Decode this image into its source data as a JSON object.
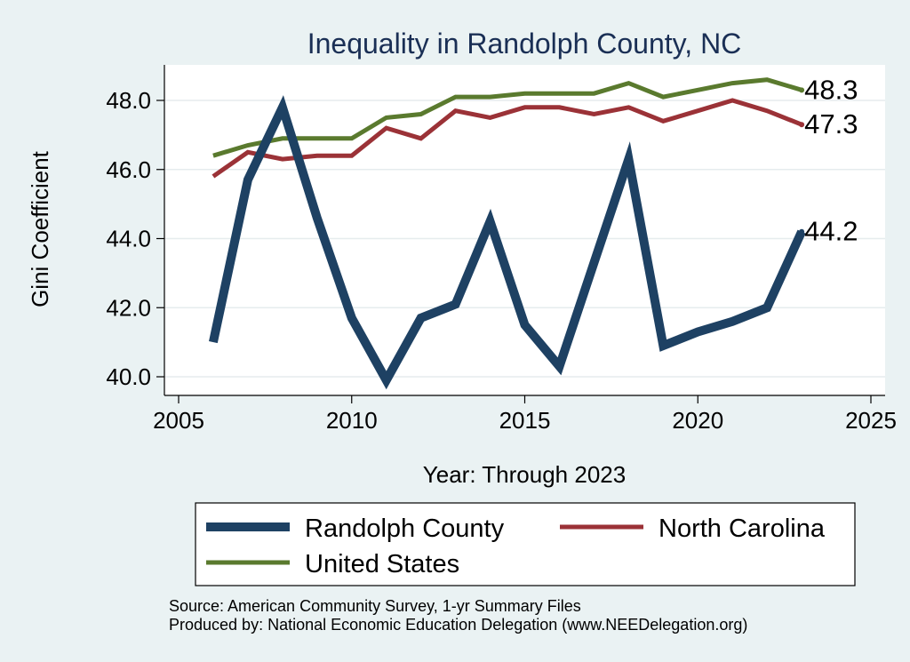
{
  "chart_data": {
    "type": "line",
    "title": "Inequality in Randolph County, NC",
    "xlabel": "Year: Through 2023",
    "ylabel": "Gini Coefficient",
    "xlim": [
      2005,
      2025
    ],
    "ylim": [
      39.8,
      48.9
    ],
    "xticks": [
      2005,
      2010,
      2015,
      2020,
      2025
    ],
    "yticks": [
      40.0,
      42.0,
      44.0,
      46.0,
      48.0
    ],
    "xtick_labels": [
      "2005",
      "2010",
      "2015",
      "2020",
      "2025"
    ],
    "ytick_labels": [
      "40.0",
      "42.0",
      "44.0",
      "46.0",
      "48.0"
    ],
    "grid": true,
    "x": [
      2006,
      2007,
      2008,
      2009,
      2010,
      2011,
      2012,
      2013,
      2014,
      2015,
      2016,
      2017,
      2018,
      2019,
      2020,
      2021,
      2022,
      2023
    ],
    "series": [
      {
        "name": "Randolph County",
        "color": "#1e4163",
        "width": "thick",
        "values": [
          41.0,
          45.7,
          47.8,
          44.6,
          41.7,
          39.9,
          41.7,
          42.1,
          44.5,
          41.5,
          40.3,
          43.3,
          46.3,
          40.9,
          41.3,
          41.6,
          42.0,
          44.2
        ],
        "end_label": "44.2"
      },
      {
        "name": "North Carolina",
        "color": "#9b3237",
        "width": "medium",
        "values": [
          45.8,
          46.5,
          46.3,
          46.4,
          46.4,
          47.2,
          46.9,
          47.7,
          47.5,
          47.8,
          47.8,
          47.6,
          47.8,
          47.4,
          47.7,
          48.0,
          47.7,
          47.3
        ],
        "end_label": "47.3"
      },
      {
        "name": "United States",
        "color": "#5a7a2e",
        "width": "medium",
        "values": [
          46.4,
          46.7,
          46.9,
          46.9,
          46.9,
          47.5,
          47.6,
          48.1,
          48.1,
          48.2,
          48.2,
          48.2,
          48.5,
          48.1,
          48.3,
          48.5,
          48.6,
          48.3
        ],
        "end_label": "48.3"
      }
    ],
    "legend": {
      "placement": "bottom",
      "entries": [
        "Randolph County",
        "North Carolina",
        "United States"
      ]
    },
    "notes": [
      "Source: American Community Survey, 1-yr Summary Files",
      "Produced by: National Economic Education Delegation (www.NEEDelegation.org)"
    ]
  }
}
